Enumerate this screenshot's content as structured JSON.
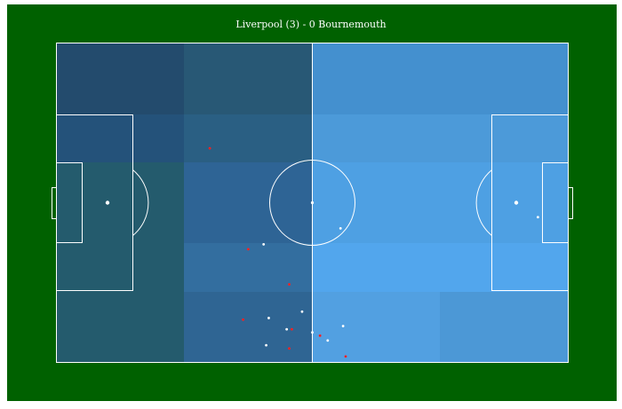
{
  "title": "Liverpool (3) - 0 Bournemouth",
  "colors": {
    "background": "#006100",
    "lines": "#ffffff",
    "home_event": "#ff2020",
    "away_event": "#ffffff"
  },
  "zones": [
    {
      "col": 0,
      "row": 0,
      "color": "#234b6d"
    },
    {
      "col": 1,
      "row": 0,
      "color": "#285875"
    },
    {
      "col": 2,
      "row": 0,
      "color": "#4490cf"
    },
    {
      "col": 3,
      "row": 0,
      "color": "#4490cf"
    },
    {
      "col": 0,
      "row": 1,
      "color": "#24527a"
    },
    {
      "col": 1,
      "row": 1,
      "color": "#2a5f83"
    },
    {
      "col": 2,
      "row": 1,
      "color": "#4c9ad9"
    },
    {
      "col": 3,
      "row": 1,
      "color": "#4c9ad9"
    },
    {
      "col": 0,
      "row": 2,
      "color": "#245b6d"
    },
    {
      "col": 1,
      "row": 2,
      "color": "#2e6495"
    },
    {
      "col": 2,
      "row": 2,
      "color": "#4ea0e3"
    },
    {
      "col": 3,
      "row": 2,
      "color": "#4ea0e3"
    },
    {
      "col": 0,
      "row": 3,
      "color": "#245b6d"
    },
    {
      "col": 1,
      "row": 3,
      "color": "#336e9f"
    },
    {
      "col": 2,
      "row": 3,
      "color": "#52a6ed"
    },
    {
      "col": 3,
      "row": 3,
      "color": "#52a6ed"
    },
    {
      "col": 0,
      "row": 4,
      "color": "#245b6d"
    },
    {
      "col": 1,
      "row": 4,
      "color": "#2f6593"
    },
    {
      "col": 2,
      "row": 4,
      "color": "#52a0e1"
    },
    {
      "col": 3,
      "row": 4,
      "color": "#4c98d6"
    }
  ],
  "events": [
    {
      "x": 37.5,
      "y": 64.5,
      "team": "home"
    },
    {
      "x": 30.0,
      "y": 33.0,
      "team": "home"
    },
    {
      "x": 45.5,
      "y": 75.5,
      "team": "home"
    },
    {
      "x": 36.5,
      "y": 86.5,
      "team": "home"
    },
    {
      "x": 46.0,
      "y": 89.5,
      "team": "home"
    },
    {
      "x": 51.5,
      "y": 91.5,
      "team": "home"
    },
    {
      "x": 45.5,
      "y": 95.5,
      "team": "home"
    },
    {
      "x": 56.5,
      "y": 98.0,
      "team": "home"
    },
    {
      "x": 40.5,
      "y": 63.0,
      "team": "away"
    },
    {
      "x": 55.5,
      "y": 58.0,
      "team": "away"
    },
    {
      "x": 94.0,
      "y": 54.5,
      "team": "away"
    },
    {
      "x": 48.0,
      "y": 84.0,
      "team": "away"
    },
    {
      "x": 41.5,
      "y": 86.0,
      "team": "away"
    },
    {
      "x": 45.0,
      "y": 89.5,
      "team": "away"
    },
    {
      "x": 50.0,
      "y": 90.5,
      "team": "away"
    },
    {
      "x": 56.0,
      "y": 88.5,
      "team": "away"
    },
    {
      "x": 53.0,
      "y": 93.0,
      "team": "away"
    },
    {
      "x": 41.0,
      "y": 94.5,
      "team": "away"
    }
  ]
}
